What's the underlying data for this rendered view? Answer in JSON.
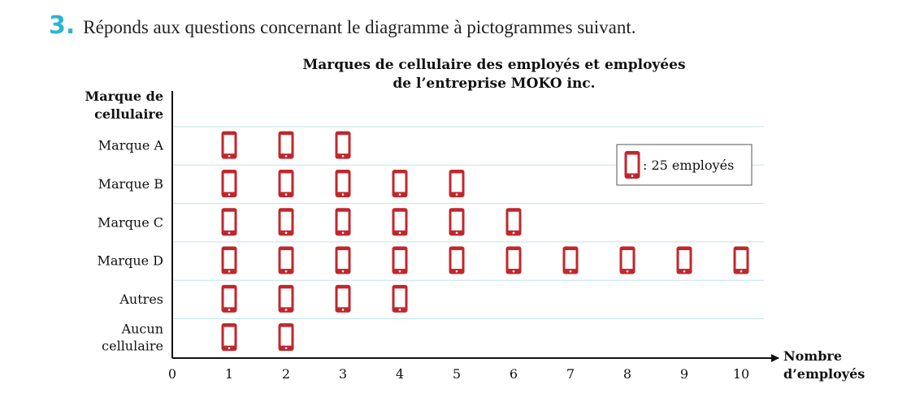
{
  "question": {
    "number": "3.",
    "text": "Réponds aux questions concernant le diagramme à pictogrammes suivant."
  },
  "colors": {
    "accent": "#2bb5cf",
    "pictogram": "#c0272d",
    "gridline": "#bfe3ee",
    "axis": "#111111"
  },
  "chart_data": {
    "type": "pictogram",
    "title_lines": [
      "Marques de cellulaire des employés et employées",
      "de l’entreprise MOKO inc."
    ],
    "ylabel_lines": [
      "Marque de",
      "cellulaire"
    ],
    "xlabel_lines": [
      "Nombre",
      "d’employés"
    ],
    "categories": [
      {
        "label_lines": [
          "Marque A"
        ],
        "icons": 3
      },
      {
        "label_lines": [
          "Marque B"
        ],
        "icons": 5
      },
      {
        "label_lines": [
          "Marque C"
        ],
        "icons": 6
      },
      {
        "label_lines": [
          "Marque D"
        ],
        "icons": 10
      },
      {
        "label_lines": [
          "Autres"
        ],
        "icons": 4
      },
      {
        "label_lines": [
          "Aucun",
          "cellulaire"
        ],
        "icons": 2
      }
    ],
    "x_ticks": [
      "0",
      "1",
      "2",
      "3",
      "4",
      "5",
      "6",
      "7",
      "8",
      "9",
      "10"
    ],
    "xlim": [
      0,
      10
    ],
    "grid": true,
    "legend": {
      "text": ": 25 employés",
      "icon": "phone-icon",
      "placement": "right"
    }
  }
}
